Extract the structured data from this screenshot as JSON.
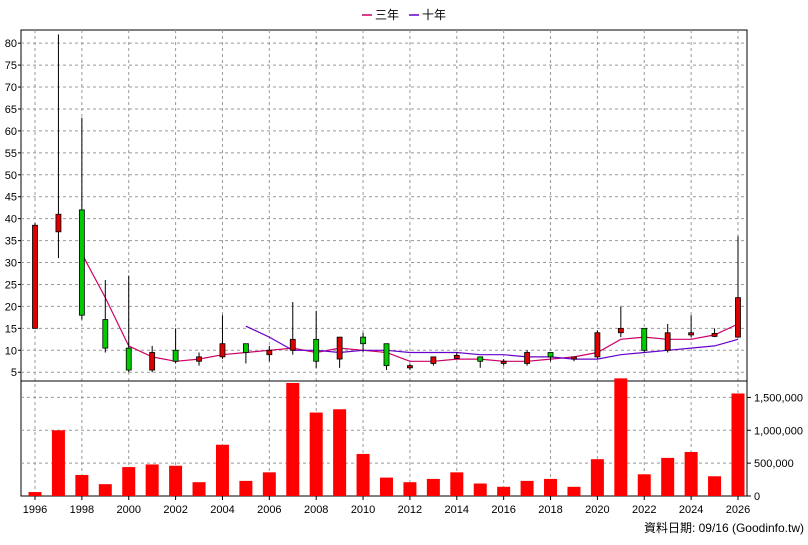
{
  "legend": {
    "three_year": "三年",
    "ten_year": "十年"
  },
  "footer_note": "資料日期: 09/16 (Goodinfo.tw)",
  "colors": {
    "up_candle": "#dd0000",
    "down_candle": "#00cc00",
    "three_year_line": "#cc0066",
    "ten_year_line": "#6600cc",
    "volume_bar": "#ff0000",
    "grid": "#999999"
  },
  "chart_data": [
    {
      "type": "candlestick",
      "x_is_year": true,
      "ylim": [
        3,
        83
      ],
      "yticks": [
        "5",
        "10",
        "15",
        "20",
        "25",
        "30",
        "35",
        "40",
        "45",
        "50",
        "55",
        "60",
        "65",
        "70",
        "75",
        "80"
      ],
      "grid": true,
      "legend_placement": "top-center",
      "candles": [
        {
          "year": 1996,
          "open": 15,
          "high": 39,
          "low": 15,
          "close": 38.5
        },
        {
          "year": 1997,
          "open": 37,
          "high": 82,
          "low": 31,
          "close": 41
        },
        {
          "year": 1998,
          "open": 42,
          "high": 63,
          "low": 17,
          "close": 18
        },
        {
          "year": 1999,
          "open": 17,
          "high": 26,
          "low": 9.5,
          "close": 10.5
        },
        {
          "year": 2000,
          "open": 10.5,
          "high": 27,
          "low": 5,
          "close": 5.5
        },
        {
          "year": 2001,
          "open": 5.5,
          "high": 11,
          "low": 5,
          "close": 9.5
        },
        {
          "year": 2002,
          "open": 10,
          "high": 15,
          "low": 7,
          "close": 7.5
        },
        {
          "year": 2003,
          "open": 7.5,
          "high": 9.5,
          "low": 6.5,
          "close": 8.5
        },
        {
          "year": 2004,
          "open": 8.5,
          "high": 18,
          "low": 8,
          "close": 11.5
        },
        {
          "year": 2005,
          "open": 11.5,
          "high": 11.5,
          "low": 7,
          "close": 9.5
        },
        {
          "year": 2006,
          "open": 9,
          "high": 11,
          "low": 7.5,
          "close": 10
        },
        {
          "year": 2007,
          "open": 10,
          "high": 21,
          "low": 9,
          "close": 12.5
        },
        {
          "year": 2008,
          "open": 12.5,
          "high": 19,
          "low": 6,
          "close": 7.5
        },
        {
          "year": 2009,
          "open": 8,
          "high": 13,
          "low": 6,
          "close": 13
        },
        {
          "year": 2010,
          "open": 13,
          "high": 14,
          "low": 9.5,
          "close": 11.5
        },
        {
          "year": 2011,
          "open": 11.5,
          "high": 11.5,
          "low": 5.5,
          "close": 6.5
        },
        {
          "year": 2012,
          "open": 6,
          "high": 7,
          "low": 5.5,
          "close": 6.5
        },
        {
          "year": 2013,
          "open": 7,
          "high": 8.5,
          "low": 6.5,
          "close": 8.5
        },
        {
          "year": 2014,
          "open": 8.5,
          "high": 9.5,
          "low": 8,
          "close": 8.5
        },
        {
          "year": 2015,
          "open": 8.5,
          "high": 8.5,
          "low": 6,
          "close": 7.5
        },
        {
          "year": 2016,
          "open": 7,
          "high": 8,
          "low": 6.5,
          "close": 7.5
        },
        {
          "year": 2017,
          "open": 7,
          "high": 10,
          "low": 6.5,
          "close": 9.5
        },
        {
          "year": 2018,
          "open": 9.5,
          "high": 9.5,
          "low": 7.5,
          "close": 8.5
        },
        {
          "year": 2019,
          "open": 8,
          "high": 8.5,
          "low": 7.5,
          "close": 8.5
        },
        {
          "year": 2020,
          "open": 8.5,
          "high": 14.5,
          "low": 8,
          "close": 14
        },
        {
          "year": 2021,
          "open": 14,
          "high": 20,
          "low": 13,
          "close": 15
        },
        {
          "year": 2022,
          "open": 15,
          "high": 15,
          "low": 9.5,
          "close": 10
        },
        {
          "year": 2023,
          "open": 10,
          "high": 16,
          "low": 9.5,
          "close": 14
        },
        {
          "year": 2024,
          "open": 13.5,
          "high": 18,
          "low": 13,
          "close": 14
        },
        {
          "year": 2025,
          "open": 13.5,
          "high": 15,
          "low": 13,
          "close": 13.5
        },
        {
          "year": 2026,
          "open": 13,
          "high": 36,
          "low": 13,
          "close": 22
        }
      ],
      "series": [
        {
          "name": "三年",
          "key": "three_year",
          "x": [
            1998,
            1999,
            2000,
            2001,
            2002,
            2003,
            2004,
            2005,
            2006,
            2007,
            2008,
            2009,
            2010,
            2011,
            2012,
            2013,
            2014,
            2015,
            2016,
            2017,
            2018,
            2019,
            2020,
            2021,
            2022,
            2023,
            2024,
            2025,
            2026
          ],
          "values": [
            32,
            22,
            11,
            8.5,
            7.5,
            8,
            9,
            9.5,
            10,
            10.5,
            9.5,
            10.5,
            10,
            9.5,
            7.5,
            7.5,
            8,
            8,
            7.5,
            7.5,
            8,
            8.5,
            9.5,
            12.5,
            13,
            12.5,
            12.5,
            13.5,
            16
          ]
        },
        {
          "name": "十年",
          "key": "ten_year",
          "x": [
            2005,
            2006,
            2007,
            2008,
            2009,
            2010,
            2011,
            2012,
            2013,
            2014,
            2015,
            2016,
            2017,
            2018,
            2019,
            2020,
            2021,
            2022,
            2023,
            2024,
            2025,
            2026
          ],
          "values": [
            15.5,
            13,
            10,
            10,
            9.5,
            10,
            10,
            9.5,
            9.5,
            9.5,
            9,
            9,
            8.5,
            8.5,
            8,
            8,
            9,
            9.5,
            10,
            10.5,
            11,
            12.5
          ]
        }
      ]
    },
    {
      "type": "bar",
      "ylim": [
        0,
        1750000
      ],
      "yticks": [
        "0",
        "500,000",
        "1,000,000",
        "1,500,000"
      ],
      "ytick_values": [
        0,
        500000,
        1000000,
        1500000
      ],
      "grid": true,
      "xticks": [
        "1996",
        "1998",
        "2000",
        "2002",
        "2004",
        "2006",
        "2008",
        "2010",
        "2012",
        "2014",
        "2016",
        "2018",
        "2020",
        "2022",
        "2024",
        "2026"
      ],
      "xtick_values": [
        1996,
        1998,
        2000,
        2002,
        2004,
        2006,
        2008,
        2010,
        2012,
        2014,
        2016,
        2018,
        2020,
        2022,
        2024,
        2026
      ],
      "x": [
        1996,
        1997,
        1998,
        1999,
        2000,
        2001,
        2002,
        2003,
        2004,
        2005,
        2006,
        2007,
        2008,
        2009,
        2010,
        2011,
        2012,
        2013,
        2014,
        2015,
        2016,
        2017,
        2018,
        2019,
        2020,
        2021,
        2022,
        2023,
        2024,
        2025,
        2026
      ],
      "values": [
        60000,
        1000000,
        320000,
        180000,
        440000,
        480000,
        460000,
        210000,
        780000,
        230000,
        360000,
        1720000,
        1270000,
        1320000,
        640000,
        280000,
        210000,
        260000,
        360000,
        190000,
        140000,
        230000,
        260000,
        140000,
        560000,
        1790000,
        330000,
        580000,
        670000,
        300000,
        1560000
      ]
    }
  ]
}
